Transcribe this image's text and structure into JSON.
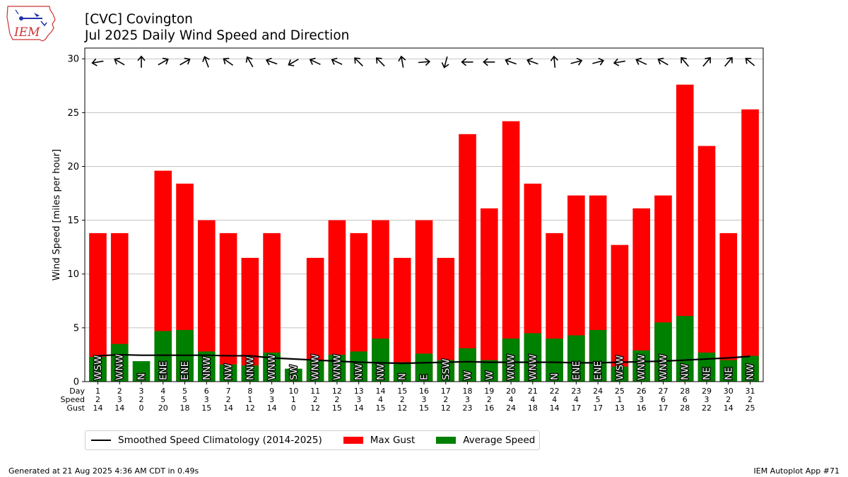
{
  "header": {
    "title_line1": "[CVC] Covington",
    "title_line2": "Jul 2025 Daily Wind Speed and Direction",
    "logo_text": "IEM"
  },
  "footer": {
    "left": "Generated at 21 Aug 2025 4:36 AM CDT in 0.49s",
    "right": "IEM Autoplot App #71"
  },
  "legend": {
    "climatology": "Smoothed Speed Climatology (2014-2025)",
    "gust": "Max Gust",
    "avg": "Average Speed"
  },
  "colors": {
    "gust": "#ff0000",
    "avg": "#008000",
    "climatology": "#000000",
    "grid": "#b0b0b0"
  },
  "chart_data": {
    "type": "bar",
    "title": "[CVC] Covington\nJul 2025 Daily Wind Speed and Direction",
    "ylabel": "Wind Speed [miles per hour]",
    "ylim": [
      0,
      31
    ],
    "yticks": [
      0,
      5,
      10,
      15,
      20,
      25,
      30
    ],
    "grid": true,
    "legend_position": "below",
    "row_labels": [
      "Day",
      "Speed",
      "Gust"
    ],
    "days": [
      1,
      2,
      3,
      4,
      5,
      6,
      7,
      8,
      9,
      10,
      11,
      12,
      13,
      14,
      15,
      16,
      17,
      18,
      19,
      20,
      21,
      22,
      23,
      24,
      25,
      26,
      27,
      28,
      29,
      30,
      31
    ],
    "speed_labels": [
      2,
      3,
      2,
      5,
      5,
      3,
      2,
      1,
      3,
      1,
      2,
      2,
      3,
      4,
      2,
      3,
      2,
      3,
      2,
      4,
      4,
      4,
      4,
      5,
      1,
      3,
      6,
      6,
      3,
      2,
      2
    ],
    "gust_labels": [
      14,
      14,
      0,
      20,
      18,
      15,
      14,
      12,
      14,
      0,
      12,
      15,
      14,
      15,
      12,
      15,
      12,
      23,
      16,
      24,
      18,
      14,
      17,
      17,
      13,
      16,
      17,
      28,
      22,
      14,
      25
    ],
    "series": [
      {
        "name": "Max Gust",
        "values": [
          13.8,
          13.8,
          0,
          19.6,
          18.4,
          15.0,
          13.8,
          11.5,
          13.8,
          0,
          11.5,
          15.0,
          13.8,
          15.0,
          11.5,
          15.0,
          11.5,
          23.0,
          16.1,
          24.2,
          18.4,
          13.8,
          17.3,
          17.3,
          12.7,
          16.1,
          17.3,
          27.6,
          21.9,
          13.8,
          25.3
        ]
      },
      {
        "name": "Average Speed",
        "values": [
          2.3,
          3.5,
          1.9,
          4.7,
          4.8,
          2.8,
          1.6,
          1.5,
          2.7,
          1.2,
          2.0,
          2.5,
          2.8,
          4.0,
          1.8,
          2.6,
          2.0,
          3.1,
          2.0,
          4.0,
          4.5,
          4.0,
          4.3,
          4.8,
          1.4,
          2.9,
          5.5,
          6.1,
          2.7,
          2.0,
          2.4
        ]
      },
      {
        "name": "Smoothed Speed Climatology (2014-2025)",
        "values": [
          2.4,
          2.5,
          2.45,
          2.45,
          2.45,
          2.45,
          2.4,
          2.4,
          2.2,
          2.1,
          2.0,
          1.9,
          1.8,
          1.75,
          1.7,
          1.75,
          1.8,
          1.85,
          1.8,
          1.8,
          1.8,
          1.8,
          1.75,
          1.75,
          1.8,
          1.85,
          1.9,
          2.0,
          2.1,
          2.2,
          2.35
        ]
      }
    ],
    "directions": [
      "WSW",
      "WNW",
      "N",
      "ENE",
      "ENE",
      "NNW",
      "NW",
      "NNW",
      "WNW",
      "SW",
      "WNW",
      "WNW",
      "NW",
      "NW",
      "N",
      "E",
      "SSW",
      "W",
      "W",
      "WNW",
      "WNW",
      "N",
      "ENE",
      "ENE",
      "WSW",
      "WNW",
      "WNW",
      "NW",
      "NE",
      "NE",
      "NW"
    ],
    "arrow_angles": [
      80,
      120,
      180,
      240,
      240,
      160,
      125,
      150,
      110,
      60,
      115,
      115,
      135,
      135,
      170,
      265,
      15,
      90,
      90,
      110,
      110,
      175,
      255,
      255,
      80,
      115,
      120,
      140,
      220,
      220,
      130
    ]
  }
}
